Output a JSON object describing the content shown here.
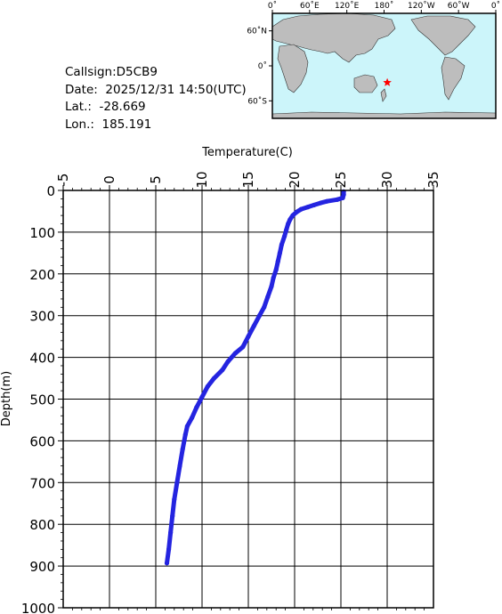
{
  "header": {
    "callsign": "Callsign:D5CB9",
    "date": "Date:  2025/12/31 14:50(UTC)",
    "lat": "Lat.:  -28.669",
    "lon": "Lon.:  185.191"
  },
  "map": {
    "top_labels": [
      "0˚",
      "60˚E",
      "120˚E",
      "180˚",
      "120˚W",
      "60˚W",
      "0˚"
    ],
    "left_labels": [
      "60˚N",
      "0˚",
      "60˚S"
    ],
    "marker": {
      "lat": -28.669,
      "lon": 185.191,
      "color": "#ff0000"
    },
    "ocean_color": "#ccf5fa",
    "land_color": "#bdbdbd"
  },
  "chart_data": {
    "type": "line",
    "xlabel": "Temperature(C)",
    "ylabel": "Depth(m)",
    "xlim": [
      -5,
      35
    ],
    "ylim": [
      0,
      1000
    ],
    "y_inverted": true,
    "x_ticks": [
      "-5",
      "0",
      "5",
      "10",
      "15",
      "20",
      "25",
      "30",
      "35"
    ],
    "y_ticks": [
      "0",
      "100",
      "200",
      "300",
      "400",
      "500",
      "600",
      "700",
      "800",
      "900",
      "1000"
    ],
    "grid": true,
    "series": [
      {
        "color": "#2424e0",
        "points": [
          [
            25.3,
            3
          ],
          [
            25.3,
            10
          ],
          [
            25.2,
            18
          ],
          [
            24.6,
            22
          ],
          [
            23.5,
            26
          ],
          [
            22.8,
            30
          ],
          [
            22.1,
            35
          ],
          [
            21.4,
            40
          ],
          [
            20.7,
            45
          ],
          [
            20.2,
            52
          ],
          [
            19.8,
            60
          ],
          [
            19.5,
            70
          ],
          [
            19.3,
            80
          ],
          [
            19.1,
            95
          ],
          [
            18.9,
            110
          ],
          [
            18.6,
            130
          ],
          [
            18.4,
            150
          ],
          [
            18.2,
            170
          ],
          [
            18.0,
            190
          ],
          [
            17.7,
            210
          ],
          [
            17.5,
            230
          ],
          [
            17.1,
            255
          ],
          [
            16.7,
            280
          ],
          [
            16.2,
            300
          ],
          [
            15.6,
            325
          ],
          [
            15.0,
            350
          ],
          [
            14.4,
            375
          ],
          [
            13.6,
            390
          ],
          [
            12.8,
            410
          ],
          [
            12.2,
            430
          ],
          [
            11.3,
            450
          ],
          [
            10.6,
            470
          ],
          [
            10.0,
            495
          ],
          [
            9.4,
            520
          ],
          [
            8.9,
            545
          ],
          [
            8.4,
            565
          ],
          [
            8.2,
            585
          ],
          [
            7.9,
            620
          ],
          [
            7.6,
            660
          ],
          [
            7.3,
            700
          ],
          [
            7.0,
            740
          ],
          [
            6.8,
            780
          ],
          [
            6.6,
            820
          ],
          [
            6.4,
            860
          ],
          [
            6.2,
            893
          ]
        ]
      }
    ]
  }
}
